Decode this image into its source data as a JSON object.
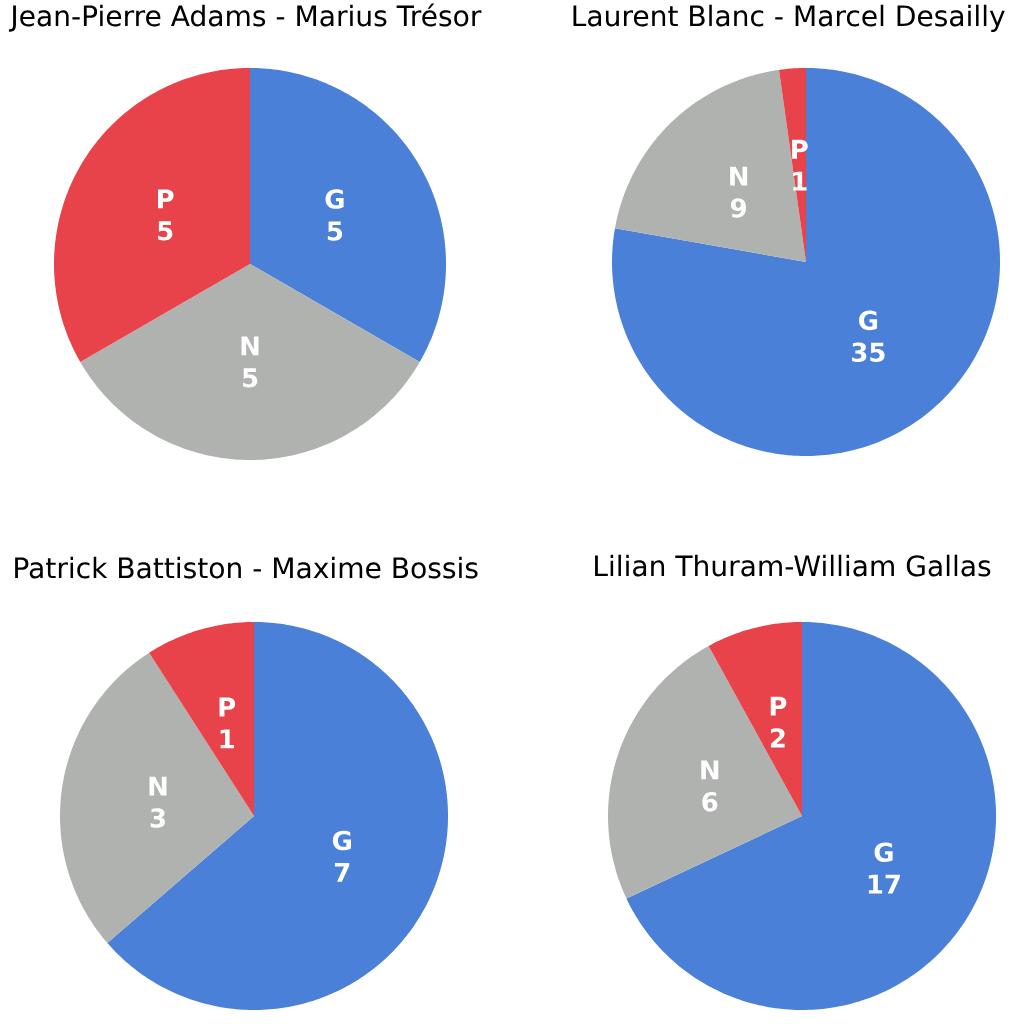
{
  "chart_data": [
    {
      "type": "pie",
      "title": "Jean-Pierre Adams - Marius Trésor",
      "categories": [
        "G",
        "N",
        "P"
      ],
      "values": [
        5,
        5,
        5
      ],
      "colors": [
        "#4a80d8",
        "#b0b2b0",
        "#e8434a"
      ],
      "data_labels": true
    },
    {
      "type": "pie",
      "title": "Laurent Blanc - Marcel Desailly",
      "categories": [
        "G",
        "N",
        "P"
      ],
      "values": [
        35,
        9,
        1
      ],
      "colors": [
        "#4a80d8",
        "#b0b2b0",
        "#e8434a"
      ],
      "data_labels": true
    },
    {
      "type": "pie",
      "title": "Patrick Battiston - Maxime Bossis",
      "categories": [
        "G",
        "N",
        "P"
      ],
      "values": [
        7,
        3,
        1
      ],
      "colors": [
        "#4a80d8",
        "#b0b2b0",
        "#e8434a"
      ],
      "data_labels": true
    },
    {
      "type": "pie",
      "title": "Lilian Thuram-William Gallas",
      "categories": [
        "G",
        "N",
        "P"
      ],
      "values": [
        17,
        6,
        2
      ],
      "colors": [
        "#4a80d8",
        "#b0b2b0",
        "#e8434a"
      ],
      "data_labels": true
    }
  ]
}
